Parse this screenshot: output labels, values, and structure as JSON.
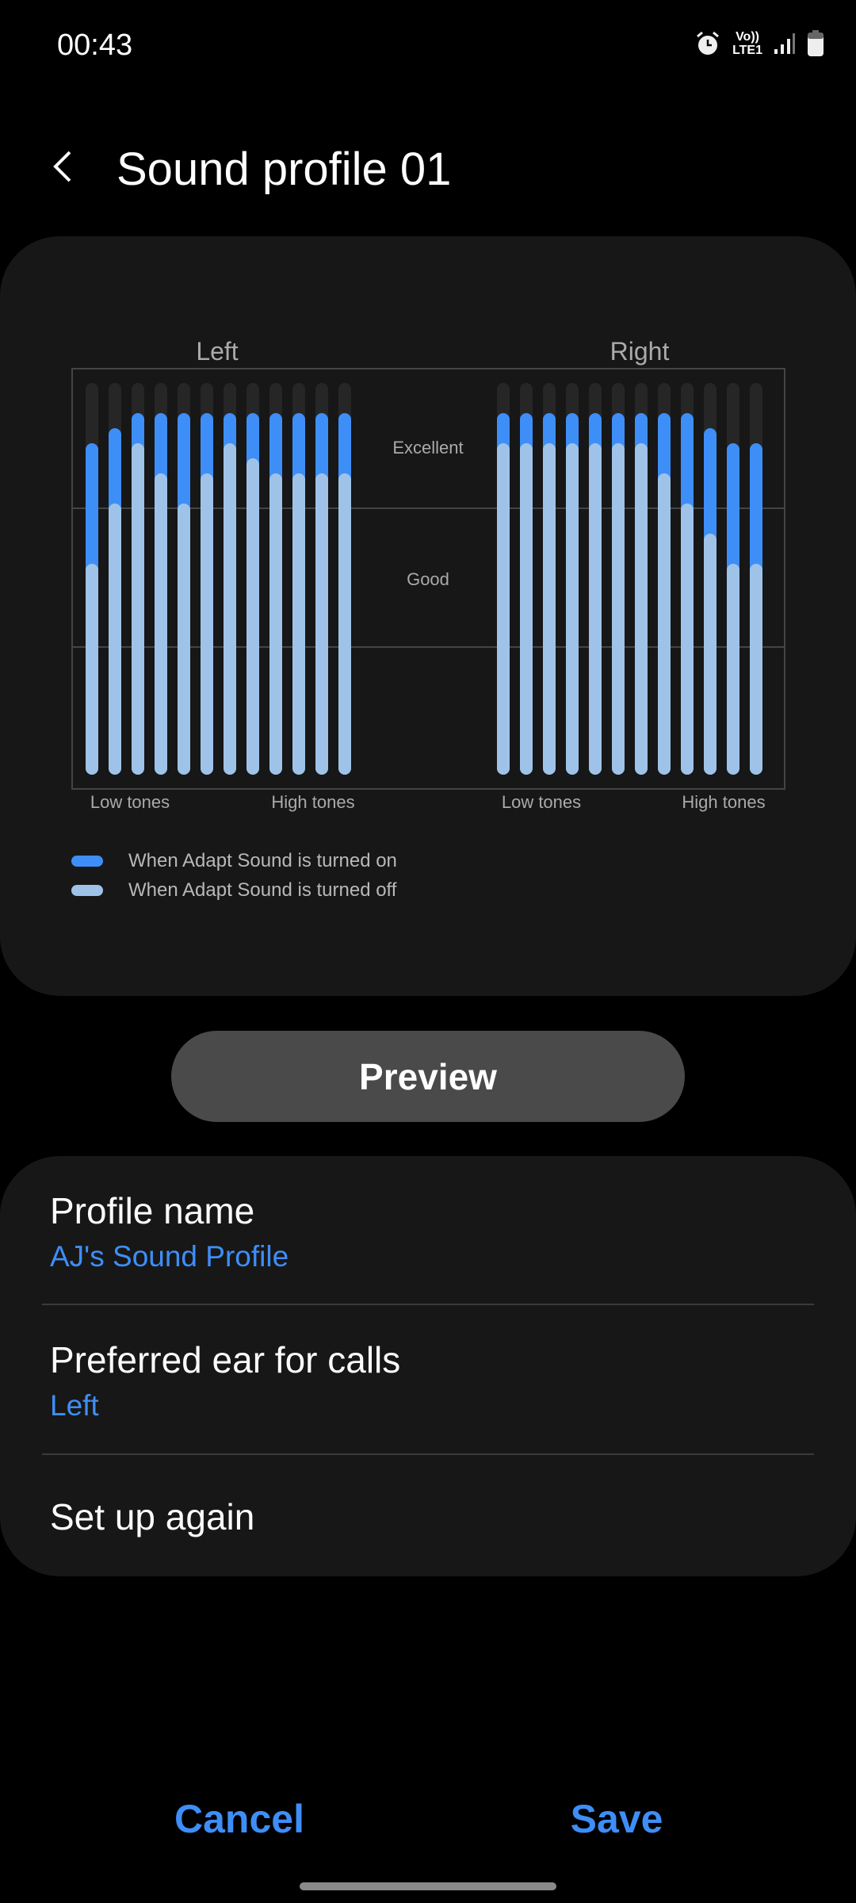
{
  "status_bar": {
    "time": "00:43",
    "network_top": "Vo))",
    "network_bottom": "LTE1",
    "icons": [
      "alarm-icon",
      "volte-icon",
      "signal-icon",
      "battery-icon"
    ]
  },
  "header": {
    "title": "Sound profile 01",
    "back_icon": "chevron-left-icon"
  },
  "colors": {
    "on": "#3e8ef7",
    "off": "#9fc3e8",
    "track": "#262626",
    "accent": "#3e8ef7"
  },
  "chart_data": {
    "type": "bar",
    "panels": [
      {
        "title": "Left",
        "x_start_label": "Low tones",
        "x_end_label": "High tones",
        "series": [
          {
            "name": "When Adapt Sound is turned on",
            "values": [
              22,
              23,
              24,
              24,
              24,
              24,
              24,
              24,
              24,
              24,
              24,
              24
            ]
          },
          {
            "name": "When Adapt Sound is turned off",
            "values": [
              14,
              18,
              22,
              20,
              18,
              20,
              22,
              21,
              20,
              20,
              20,
              20
            ]
          }
        ]
      },
      {
        "title": "Right",
        "x_start_label": "Low tones",
        "x_end_label": "High tones",
        "series": [
          {
            "name": "When Adapt Sound is turned on",
            "values": [
              24,
              24,
              24,
              24,
              24,
              24,
              24,
              24,
              24,
              23,
              22,
              22
            ]
          },
          {
            "name": "When Adapt Sound is turned off",
            "values": [
              22,
              22,
              22,
              22,
              22,
              22,
              22,
              20,
              18,
              16,
              14,
              14
            ]
          }
        ]
      }
    ],
    "ylim": [
      0,
      26
    ],
    "band_labels": [
      "Excellent",
      "Good"
    ],
    "grid": true,
    "legend": "bottom-left"
  },
  "legend": [
    {
      "label": "When Adapt Sound is turned on"
    },
    {
      "label": "When Adapt Sound is turned off"
    }
  ],
  "preview_label": "Preview",
  "settings": {
    "profile_name": {
      "title": "Profile name",
      "value": "AJ's Sound Profile"
    },
    "preferred_ear": {
      "title": "Preferred ear for calls",
      "value": "Left"
    },
    "setup_again": {
      "title": "Set up again"
    }
  },
  "footer": {
    "cancel": "Cancel",
    "save": "Save"
  }
}
